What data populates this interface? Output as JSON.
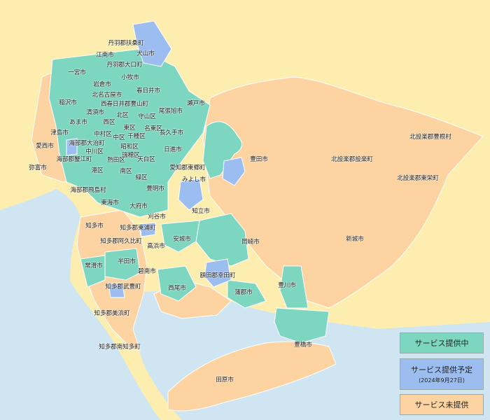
{
  "colors": {
    "land_outside": "#fdeeb0",
    "sea": "#cfe6f2",
    "provided": "#7dd6c0",
    "planned": "#9bbdf0",
    "not_provided": "#fcd3a1",
    "border": "#ffffff"
  },
  "legend": [
    {
      "label": "サービス提供中",
      "sub": "",
      "status": "provided"
    },
    {
      "label": "サービス提供予定",
      "sub": "(2024年9月27日)",
      "status": "planned"
    },
    {
      "label": "サービス未提供",
      "sub": "",
      "status": "not_provided"
    }
  ],
  "regions": [
    {
      "name": "丹羽郡扶桑町",
      "status": "provided"
    },
    {
      "name": "犬山市",
      "status": "planned"
    },
    {
      "name": "江南市",
      "status": "not_provided"
    },
    {
      "name": "丹羽郡大口町",
      "status": "provided"
    },
    {
      "name": "一宮市",
      "status": "provided"
    },
    {
      "name": "小牧市",
      "status": "provided"
    },
    {
      "name": "岩倉市",
      "status": "provided"
    },
    {
      "name": "春日井市",
      "status": "provided"
    },
    {
      "name": "北名古屋市",
      "status": "provided"
    },
    {
      "name": "稲沢市",
      "status": "not_provided"
    },
    {
      "name": "西春日井郡豊山町",
      "status": "provided"
    },
    {
      "name": "瀬戸市",
      "status": "not_provided"
    },
    {
      "name": "清須市",
      "status": "provided"
    },
    {
      "name": "北区",
      "status": "provided"
    },
    {
      "name": "守山区",
      "status": "provided"
    },
    {
      "name": "尾張旭市",
      "status": "provided"
    },
    {
      "name": "あま市",
      "status": "provided"
    },
    {
      "name": "西区",
      "status": "provided"
    },
    {
      "name": "東区",
      "status": "provided"
    },
    {
      "name": "名東区",
      "status": "provided"
    },
    {
      "name": "津島市",
      "status": "provided"
    },
    {
      "name": "中村区",
      "status": "provided"
    },
    {
      "name": "中区",
      "status": "provided"
    },
    {
      "name": "千種区",
      "status": "provided"
    },
    {
      "name": "長久手市",
      "status": "provided"
    },
    {
      "name": "海部郡大治町",
      "status": "provided"
    },
    {
      "name": "愛西市",
      "status": "not_provided"
    },
    {
      "name": "中川区",
      "status": "provided"
    },
    {
      "name": "昭和区",
      "status": "provided"
    },
    {
      "name": "日進市",
      "status": "provided"
    },
    {
      "name": "瑞穂区",
      "status": "provided"
    },
    {
      "name": "海部郡蟹江町",
      "status": "not_provided"
    },
    {
      "name": "熱田区",
      "status": "provided"
    },
    {
      "name": "天白区",
      "status": "provided"
    },
    {
      "name": "愛知郡東郷町",
      "status": "planned"
    },
    {
      "name": "弥富市",
      "status": "not_provided"
    },
    {
      "name": "港区",
      "status": "provided"
    },
    {
      "name": "南区",
      "status": "provided"
    },
    {
      "name": "緑区",
      "status": "provided"
    },
    {
      "name": "みよし市",
      "status": "provided"
    },
    {
      "name": "豊田市",
      "status": "provided"
    },
    {
      "name": "海部郡飛島村",
      "status": "not_provided"
    },
    {
      "name": "豊明市",
      "status": "planned"
    },
    {
      "name": "東海市",
      "status": "provided"
    },
    {
      "name": "大府市",
      "status": "provided"
    },
    {
      "name": "知立市",
      "status": "planned"
    },
    {
      "name": "知多市",
      "status": "not_provided"
    },
    {
      "name": "刈谷市",
      "status": "provided"
    },
    {
      "name": "知多郡東浦町",
      "status": "planned"
    },
    {
      "name": "安城市",
      "status": "provided"
    },
    {
      "name": "知多郡阿久比町",
      "status": "not_provided"
    },
    {
      "name": "高浜市",
      "status": "provided"
    },
    {
      "name": "岡崎市",
      "status": "provided"
    },
    {
      "name": "半田市",
      "status": "provided"
    },
    {
      "name": "常滑市",
      "status": "provided"
    },
    {
      "name": "碧南市",
      "status": "provided"
    },
    {
      "name": "額田郡幸田町",
      "status": "planned"
    },
    {
      "name": "知多郡武豊町",
      "status": "planned"
    },
    {
      "name": "西尾市",
      "status": "provided"
    },
    {
      "name": "蒲郡市",
      "status": "provided"
    },
    {
      "name": "豊川市",
      "status": "provided"
    },
    {
      "name": "知多郡美浜町",
      "status": "not_provided"
    },
    {
      "name": "豊橋市",
      "status": "provided"
    },
    {
      "name": "知多郡南知多町",
      "status": "not_provided"
    },
    {
      "name": "田原市",
      "status": "not_provided"
    },
    {
      "name": "新城市",
      "status": "not_provided"
    },
    {
      "name": "北設楽郡設楽町",
      "status": "not_provided"
    },
    {
      "name": "北設楽郡豊根村",
      "status": "not_provided"
    },
    {
      "name": "北設楽郡東栄町",
      "status": "not_provided"
    }
  ]
}
